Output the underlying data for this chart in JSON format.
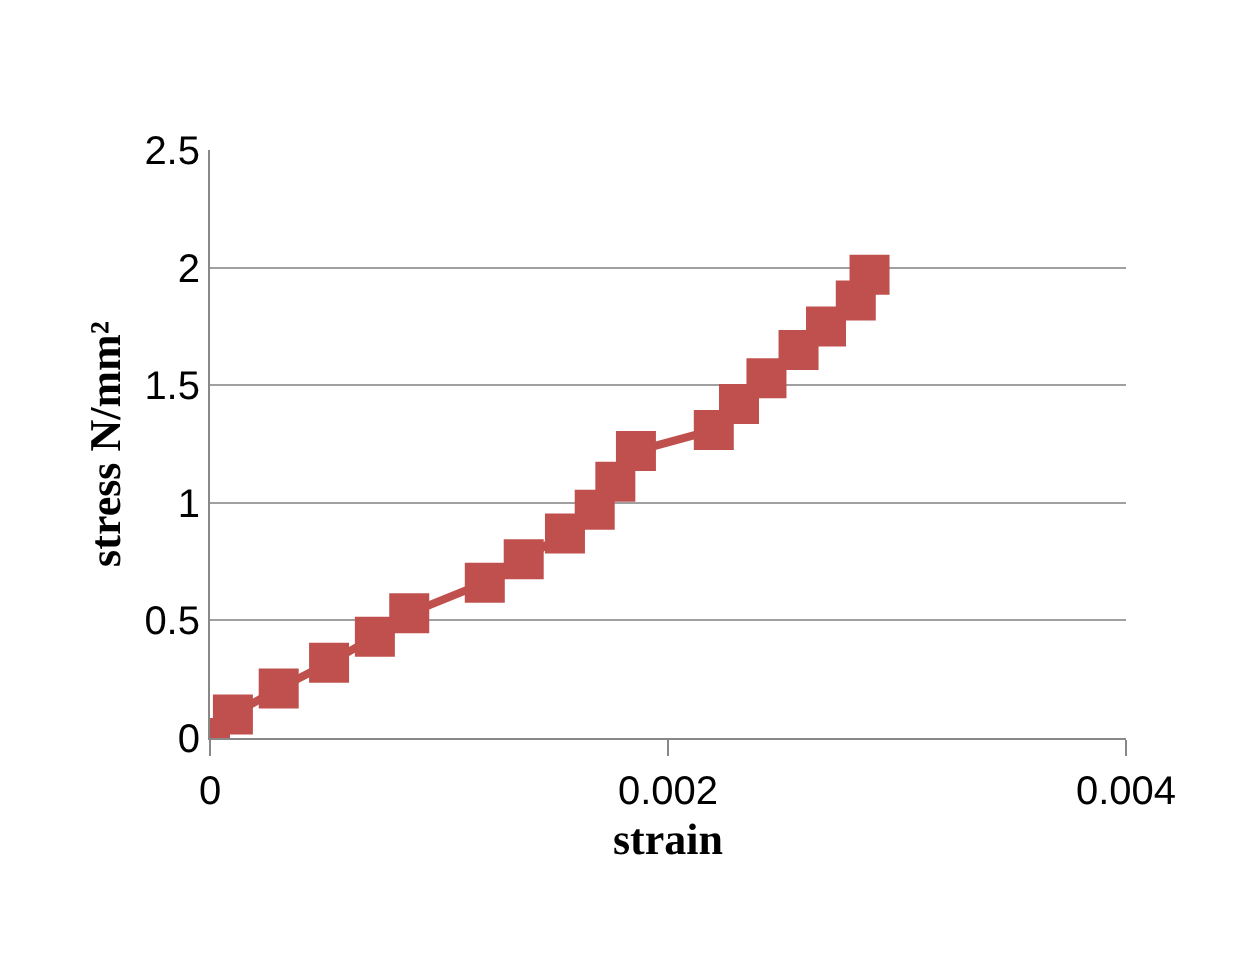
{
  "chart_data": {
    "type": "line",
    "xlabel": "strain",
    "ylabel": "stress N/mm²",
    "x": [
      0,
      0.0001,
      0.0003,
      0.00052,
      0.00072,
      0.00087,
      0.0012,
      0.00137,
      0.00155,
      0.00168,
      0.00177,
      0.00186,
      0.0022,
      0.00231,
      0.00243,
      0.00257,
      0.00269,
      0.00282,
      0.00288
    ],
    "series": [
      {
        "color": "#c0504d",
        "values": [
          0,
          0.1,
          0.21,
          0.32,
          0.43,
          0.53,
          0.66,
          0.76,
          0.87,
          0.97,
          1.09,
          1.22,
          1.31,
          1.42,
          1.53,
          1.65,
          1.75,
          1.86,
          1.97
        ]
      }
    ],
    "xlim": [
      0,
      0.004
    ],
    "xticks": [
      0,
      0.002,
      0.004
    ],
    "ylim": [
      0,
      2.5
    ],
    "yticks": [
      0,
      0.5,
      1,
      1.5,
      2,
      2.5
    ],
    "grid": "y",
    "legend": false,
    "marker": "square",
    "line_style": "solid"
  }
}
